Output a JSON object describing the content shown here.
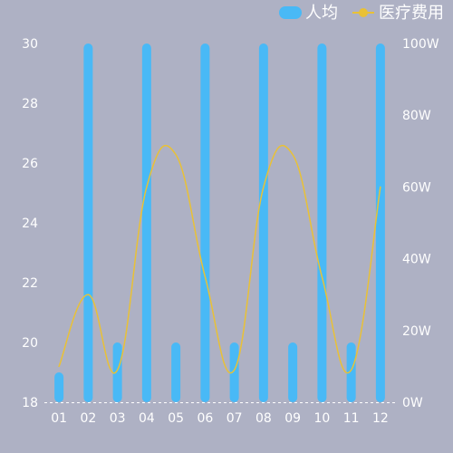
{
  "colors": {
    "background": "#aeb1c4",
    "bar": "#49b9f6",
    "line": "#e9c136",
    "text": "#ffffff",
    "axis": "#ffffff"
  },
  "chart_data": {
    "type": "bar",
    "categories": [
      "01",
      "02",
      "03",
      "04",
      "05",
      "06",
      "07",
      "08",
      "09",
      "10",
      "11",
      "12"
    ],
    "series": [
      {
        "name": "人均",
        "type": "bar",
        "axis": "left",
        "values": [
          19,
          30,
          20,
          30,
          20,
          30,
          20,
          30,
          20,
          30,
          20,
          30
        ]
      },
      {
        "name": "医疗费用",
        "type": "line",
        "axis": "right",
        "smooth": true,
        "values": [
          10,
          30,
          9,
          60,
          69,
          35,
          9,
          60,
          69,
          35,
          9,
          60
        ]
      }
    ],
    "y_left": {
      "ylim": [
        18,
        30
      ],
      "ticks": [
        "18",
        "20",
        "22",
        "24",
        "26",
        "28",
        "30"
      ]
    },
    "y_right": {
      "ylim": [
        0,
        100
      ],
      "ticks": [
        "0W",
        "20W",
        "40W",
        "60W",
        "80W",
        "100W"
      ]
    },
    "grid": false,
    "legend": "top-right"
  }
}
